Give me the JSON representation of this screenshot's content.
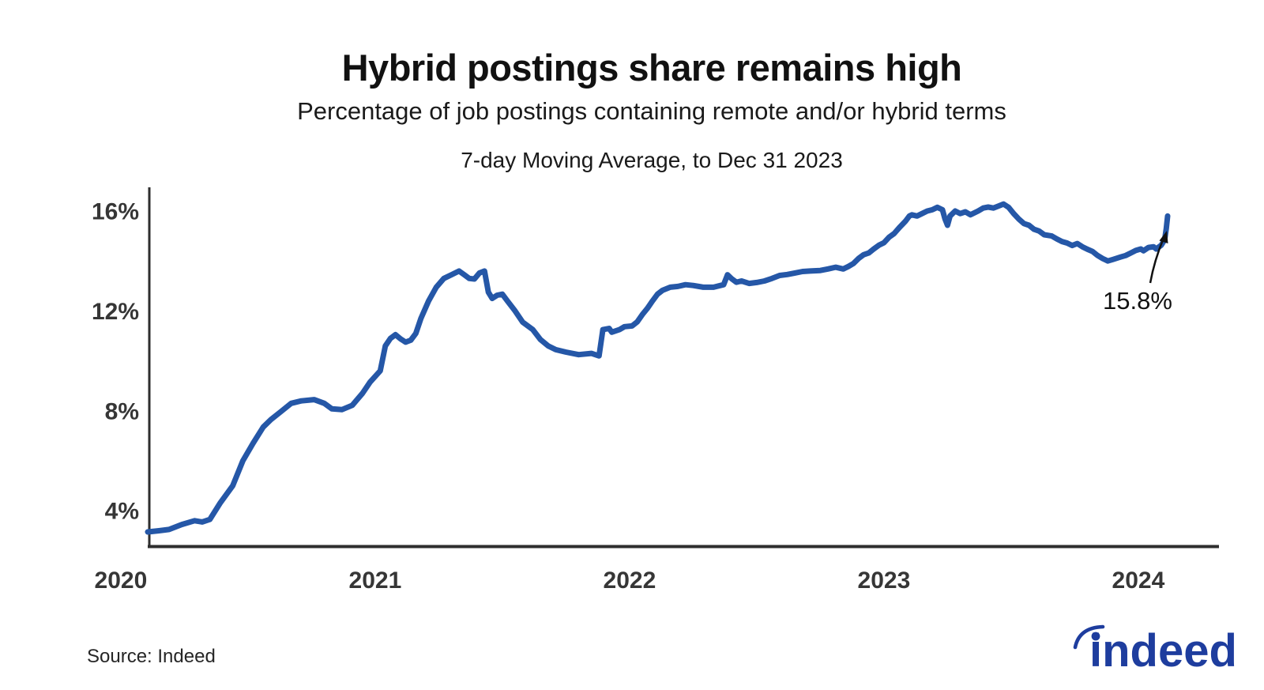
{
  "header": {
    "title": "Hybrid postings share remains high",
    "subtitle": "Percentage of job postings containing remote and/or hybrid terms",
    "period": "7-day Moving Average, to Dec 31 2023"
  },
  "footer": {
    "source": "Source: Indeed",
    "logo_text": "indeed"
  },
  "colors": {
    "line": "#2557a7",
    "logo": "#1e3d9e",
    "axis": "#2e2e2e",
    "tick_label": "#363636"
  },
  "chart_data": {
    "type": "line",
    "title": "Hybrid postings share remains high",
    "subtitle": "Percentage of job postings containing remote and/or hybrid terms",
    "note": "7-day Moving Average, to Dec 31 2023",
    "series_name": "Percentage of job postings containing remote and/or hybrid terms",
    "x_unit": "year (fractional)",
    "y_unit": "percent",
    "grid": false,
    "legend": false,
    "xlim": [
      2020.106,
      2024.317
    ],
    "ylim": [
      2.55,
      16.95
    ],
    "xticks": [
      {
        "value": 2020,
        "label": "2020"
      },
      {
        "value": 2021,
        "label": "2021"
      },
      {
        "value": 2022,
        "label": "2022"
      },
      {
        "value": 2023,
        "label": "2023"
      },
      {
        "value": 2024,
        "label": "2024"
      }
    ],
    "yticks": [
      {
        "value": 4,
        "label": "4%"
      },
      {
        "value": 8,
        "label": "8%"
      },
      {
        "value": 12,
        "label": "12%"
      },
      {
        "value": 16,
        "label": "16%"
      }
    ],
    "annotation": {
      "label": "15.8%",
      "x": 2024.115,
      "y": 15.8
    },
    "x": [
      2020.106,
      2020.15,
      2020.19,
      2020.24,
      2020.29,
      2020.32,
      2020.35,
      2020.39,
      2020.44,
      2020.48,
      2020.52,
      2020.56,
      2020.59,
      2020.63,
      2020.67,
      2020.71,
      2020.76,
      2020.8,
      2020.83,
      2020.87,
      2020.91,
      2020.95,
      2020.98,
      2021.02,
      2021.04,
      2021.06,
      2021.08,
      2021.1,
      2021.12,
      2021.14,
      2021.16,
      2021.18,
      2021.21,
      2021.24,
      2021.27,
      2021.3,
      2021.33,
      2021.35,
      2021.37,
      2021.39,
      2021.41,
      2021.43,
      2021.445,
      2021.46,
      2021.48,
      2021.5,
      2021.52,
      2021.55,
      2021.58,
      2021.62,
      2021.65,
      2021.68,
      2021.71,
      2021.75,
      2021.8,
      2021.85,
      2021.88,
      2021.895,
      2021.92,
      2021.93,
      2021.96,
      2021.98,
      2022.01,
      2022.03,
      2022.05,
      2022.07,
      2022.09,
      2022.11,
      2022.13,
      2022.16,
      2022.19,
      2022.22,
      2022.25,
      2022.29,
      2022.33,
      2022.37,
      2022.385,
      2022.4,
      2022.42,
      2022.44,
      2022.47,
      2022.5,
      2022.53,
      2022.56,
      2022.59,
      2022.62,
      2022.65,
      2022.68,
      2022.71,
      2022.75,
      2022.78,
      2022.81,
      2022.84,
      2022.86,
      2022.88,
      2022.9,
      2022.92,
      2022.94,
      2022.96,
      2022.98,
      2023.0,
      2023.02,
      2023.04,
      2023.06,
      2023.085,
      2023.1,
      2023.11,
      2023.13,
      2023.15,
      2023.17,
      2023.19,
      2023.21,
      2023.23,
      2023.24,
      2023.25,
      2023.26,
      2023.28,
      2023.3,
      2023.32,
      2023.34,
      2023.37,
      2023.39,
      2023.41,
      2023.43,
      2023.45,
      2023.47,
      2023.49,
      2023.51,
      2023.53,
      2023.55,
      2023.57,
      2023.59,
      2023.61,
      2023.63,
      2023.66,
      2023.68,
      2023.7,
      2023.72,
      2023.74,
      2023.76,
      2023.78,
      2023.8,
      2023.82,
      2023.84,
      2023.86,
      2023.88,
      2023.9,
      2023.93,
      2023.95,
      2023.97,
      2023.99,
      2024.01,
      2024.02,
      2024.04,
      2024.06,
      2024.07,
      2024.09,
      2024.1,
      2024.105,
      2024.11,
      2024.115
    ],
    "values": [
      3.15,
      3.2,
      3.25,
      3.45,
      3.6,
      3.55,
      3.65,
      4.3,
      5.0,
      6.0,
      6.7,
      7.35,
      7.65,
      7.97,
      8.3,
      8.4,
      8.45,
      8.3,
      8.08,
      8.05,
      8.22,
      8.7,
      9.15,
      9.6,
      10.6,
      10.9,
      11.05,
      10.88,
      10.75,
      10.83,
      11.1,
      11.7,
      12.4,
      12.95,
      13.3,
      13.45,
      13.6,
      13.45,
      13.3,
      13.28,
      13.52,
      13.6,
      12.75,
      12.5,
      12.63,
      12.67,
      12.4,
      12.0,
      11.55,
      11.25,
      10.85,
      10.6,
      10.45,
      10.35,
      10.25,
      10.3,
      10.2,
      11.25,
      11.3,
      11.15,
      11.25,
      11.37,
      11.4,
      11.56,
      11.85,
      12.1,
      12.4,
      12.67,
      12.83,
      12.95,
      12.98,
      13.05,
      13.02,
      12.95,
      12.95,
      13.05,
      13.45,
      13.3,
      13.15,
      13.2,
      13.1,
      13.14,
      13.2,
      13.3,
      13.42,
      13.46,
      13.52,
      13.58,
      13.6,
      13.62,
      13.68,
      13.75,
      13.68,
      13.78,
      13.9,
      14.1,
      14.25,
      14.32,
      14.48,
      14.63,
      14.73,
      14.95,
      15.1,
      15.33,
      15.6,
      15.8,
      15.85,
      15.8,
      15.9,
      16.0,
      16.05,
      16.15,
      16.05,
      15.68,
      15.43,
      15.8,
      16.0,
      15.9,
      15.97,
      15.85,
      16.0,
      16.12,
      16.16,
      16.12,
      16.2,
      16.28,
      16.15,
      15.9,
      15.68,
      15.5,
      15.43,
      15.27,
      15.2,
      15.05,
      15.0,
      14.88,
      14.78,
      14.72,
      14.62,
      14.7,
      14.57,
      14.47,
      14.38,
      14.22,
      14.1,
      14.0,
      14.06,
      14.16,
      14.22,
      14.32,
      14.42,
      14.48,
      14.41,
      14.54,
      14.57,
      14.48,
      14.63,
      14.79,
      14.95,
      15.3,
      15.8
    ]
  }
}
